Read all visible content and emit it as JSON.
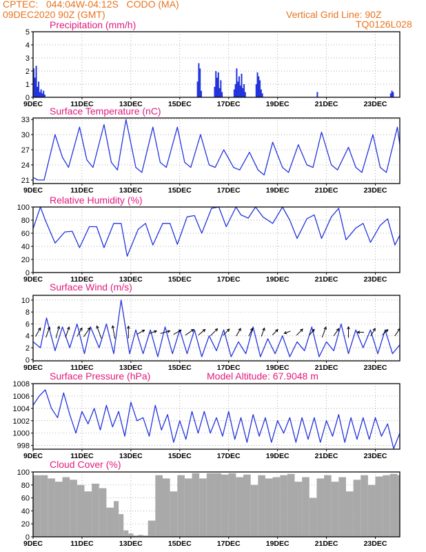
{
  "header": {
    "line1": "CPTEC:   044:04W-04:12S   CODO (MA)",
    "line2": "09DEC2020 90Z (GMT)",
    "right1": "Vertical Grid Line: 90Z",
    "right2": "TQ0126L028"
  },
  "colors": {
    "header": "#e8731e",
    "title": "#e0197d",
    "line": "#2233dd",
    "cloud": "#a9a9a9",
    "arrow": "#000000"
  },
  "x_ticks": [
    "9DEC",
    "11DEC",
    "13DEC",
    "15DEC",
    "17DEC",
    "19DEC",
    "21DEC",
    "23DEC"
  ],
  "x_range_days": [
    9,
    24
  ],
  "chart_data": [
    {
      "type": "bar",
      "id": "precip",
      "title": "Precipitation (mm/h)",
      "ylim": [
        0,
        5
      ],
      "yticks": [
        0,
        1,
        2,
        3,
        4,
        5
      ],
      "x": [
        9.0,
        9.05,
        9.1,
        9.15,
        9.2,
        9.25,
        9.3,
        9.35,
        9.4,
        9.45,
        15.7,
        15.75,
        15.8,
        15.85,
        16.4,
        16.45,
        16.5,
        16.55,
        16.6,
        16.65,
        16.7,
        17.2,
        17.25,
        17.3,
        17.35,
        17.4,
        17.45,
        17.5,
        17.55,
        17.6,
        17.65,
        18.1,
        18.15,
        18.2,
        18.25,
        18.3,
        18.35,
        20.6,
        23.6,
        23.65,
        23.7
      ],
      "values": [
        2.2,
        1.5,
        2.4,
        0.8,
        1.2,
        0.4,
        0.6,
        0.3,
        0.5,
        0.2,
        1.2,
        2.6,
        2.2,
        0.5,
        0.8,
        2.0,
        1.5,
        1.9,
        0.7,
        1.3,
        0.4,
        0.6,
        1.0,
        2.2,
        1.2,
        1.6,
        0.9,
        1.8,
        0.7,
        1.0,
        0.4,
        1.0,
        1.9,
        1.6,
        1.3,
        0.6,
        0.3,
        0.4,
        0.3,
        0.5,
        0.4
      ]
    },
    {
      "type": "line",
      "id": "temp",
      "title": "Surface Temperature (nC)",
      "ylim": [
        20.3,
        33.3
      ],
      "yticks": [
        21,
        24,
        27,
        30,
        33
      ],
      "x": [
        9.0,
        9.2,
        9.45,
        9.9,
        10.2,
        10.45,
        10.9,
        11.2,
        11.45,
        11.9,
        12.2,
        12.45,
        12.8,
        13.2,
        13.45,
        13.9,
        14.2,
        14.45,
        14.9,
        15.2,
        15.45,
        15.85,
        16.2,
        16.45,
        16.8,
        17.2,
        17.45,
        17.85,
        18.2,
        18.45,
        18.8,
        19.2,
        19.45,
        19.85,
        20.2,
        20.45,
        20.8,
        21.2,
        21.45,
        21.9,
        22.2,
        22.45,
        22.9,
        23.2,
        23.45,
        23.9,
        24.0
      ],
      "values": [
        21.5,
        21.0,
        21.0,
        30.0,
        25.5,
        23.5,
        31.5,
        25.0,
        23.5,
        32.0,
        24.5,
        23.0,
        33.0,
        23.5,
        22.5,
        31.5,
        24.5,
        23.5,
        31.5,
        24.5,
        23.5,
        30.0,
        24.0,
        23.5,
        27.0,
        23.5,
        23.0,
        26.5,
        23.0,
        22.0,
        28.5,
        23.5,
        22.5,
        28.0,
        24.0,
        23.5,
        30.5,
        24.0,
        23.0,
        27.5,
        23.5,
        22.5,
        30.0,
        23.5,
        22.5,
        31.5,
        28.0
      ]
    },
    {
      "type": "line",
      "id": "rh",
      "title": "Relative Humidity (%)",
      "ylim": [
        0,
        100
      ],
      "yticks": [
        0,
        20,
        40,
        60,
        80,
        100
      ],
      "x": [
        9.0,
        9.3,
        9.5,
        9.9,
        10.3,
        10.6,
        10.9,
        11.3,
        11.6,
        11.9,
        12.3,
        12.6,
        12.85,
        13.3,
        13.6,
        13.9,
        14.3,
        14.6,
        14.9,
        15.3,
        15.6,
        15.9,
        16.3,
        16.6,
        16.9,
        17.3,
        17.5,
        17.8,
        18.1,
        18.4,
        18.8,
        19.2,
        19.5,
        19.8,
        20.2,
        20.5,
        20.8,
        21.2,
        21.5,
        21.8,
        22.2,
        22.5,
        22.8,
        23.2,
        23.5,
        23.8,
        24.0
      ],
      "values": [
        67,
        100,
        80,
        45,
        62,
        63,
        38,
        70,
        70,
        38,
        75,
        75,
        25,
        66,
        75,
        42,
        75,
        75,
        43,
        85,
        87,
        60,
        98,
        100,
        70,
        100,
        88,
        83,
        100,
        85,
        75,
        100,
        80,
        52,
        82,
        88,
        52,
        85,
        98,
        50,
        68,
        75,
        46,
        72,
        82,
        42,
        57
      ]
    },
    {
      "type": "line",
      "id": "wind",
      "title": "Surface Wind (m/s)",
      "ylim": [
        -0.2,
        10.8
      ],
      "yticks": [
        0,
        2,
        4,
        6,
        8,
        10
      ],
      "x": [
        9.0,
        9.3,
        9.55,
        9.9,
        10.2,
        10.5,
        10.8,
        11.1,
        11.35,
        11.7,
        12.0,
        12.3,
        12.6,
        12.95,
        13.2,
        13.5,
        13.8,
        14.1,
        14.4,
        14.7,
        15.0,
        15.3,
        15.6,
        15.9,
        16.2,
        16.5,
        16.8,
        17.1,
        17.4,
        17.7,
        18.0,
        18.3,
        18.6,
        18.9,
        19.2,
        19.5,
        19.8,
        20.1,
        20.4,
        20.7,
        21.0,
        21.3,
        21.6,
        21.9,
        22.2,
        22.5,
        22.8,
        23.1,
        23.4,
        23.7,
        24.0
      ],
      "values": [
        3.0,
        2.0,
        7.0,
        1.5,
        5.5,
        2.0,
        6.0,
        1.0,
        5.5,
        2.0,
        6.0,
        1.0,
        10.0,
        1.0,
        5.0,
        1.0,
        5.0,
        0.5,
        5.5,
        1.0,
        5.0,
        1.0,
        5.0,
        0.5,
        4.0,
        1.5,
        5.0,
        0.5,
        3.0,
        1.0,
        5.5,
        0.5,
        3.5,
        1.0,
        4.0,
        0.5,
        3.0,
        1.5,
        5.5,
        0.5,
        3.0,
        1.5,
        6.0,
        1.0,
        5.0,
        2.0,
        5.0,
        1.0,
        5.0,
        1.0,
        2.5
      ]
    },
    {
      "type": "line",
      "id": "pres",
      "title": "Surface Pressure (hPa)",
      "ylim": [
        997.4,
        1008
      ],
      "yticks": [
        998,
        1000,
        1002,
        1004,
        1006,
        1008
      ],
      "annotation": "Model Altitude: 67.9048  m",
      "x": [
        9.0,
        9.25,
        9.5,
        9.75,
        10.0,
        10.25,
        10.5,
        10.75,
        11.0,
        11.25,
        11.5,
        11.75,
        12.0,
        12.25,
        12.5,
        12.75,
        13.0,
        13.25,
        13.5,
        13.75,
        14.0,
        14.25,
        14.5,
        14.75,
        15.0,
        15.25,
        15.5,
        15.75,
        16.0,
        16.25,
        16.5,
        16.75,
        17.0,
        17.25,
        17.5,
        17.75,
        18.0,
        18.25,
        18.5,
        18.75,
        19.0,
        19.25,
        19.5,
        19.75,
        20.0,
        20.25,
        20.5,
        20.75,
        21.0,
        21.25,
        21.5,
        21.75,
        22.0,
        22.25,
        22.5,
        22.75,
        23.0,
        23.25,
        23.5,
        23.75,
        24.0
      ],
      "values": [
        1004.5,
        1006.0,
        1007.0,
        1004.0,
        1002.5,
        1006.5,
        1003.0,
        1000.0,
        1003.5,
        1001.5,
        1004.0,
        1000.5,
        1004.5,
        1001.0,
        1003.5,
        999.5,
        1005.0,
        1002.0,
        1002.5,
        999.5,
        1004.5,
        1000.5,
        1003.0,
        998.5,
        1002.0,
        999.0,
        1003.5,
        1000.0,
        1003.5,
        1000.0,
        1002.5,
        999.5,
        1003.5,
        999.0,
        1002.5,
        998.5,
        1003.0,
        999.5,
        1002.5,
        998.5,
        1002.0,
        1000.0,
        1002.5,
        998.5,
        1002.5,
        999.0,
        1002.5,
        998.5,
        1002.0,
        999.5,
        1003.0,
        998.5,
        1002.5,
        999.0,
        1002.5,
        999.0,
        1002.5,
        999.5,
        1001.5,
        997.5,
        1000.0
      ]
    },
    {
      "type": "bar",
      "id": "cloud",
      "title": "Cloud Cover (%)",
      "ylim": [
        0,
        100
      ],
      "yticks": [
        0,
        20,
        40,
        60,
        80,
        100
      ],
      "x": [
        9.0,
        9.3,
        9.6,
        9.9,
        10.2,
        10.5,
        10.8,
        11.1,
        11.4,
        11.7,
        12.0,
        12.3,
        12.5,
        12.7,
        12.9,
        13.1,
        13.3,
        13.5,
        13.7,
        14.0,
        14.3,
        14.6,
        14.9,
        15.2,
        15.5,
        15.8,
        16.1,
        16.4,
        16.7,
        17.0,
        17.3,
        17.6,
        17.9,
        18.2,
        18.5,
        18.8,
        19.1,
        19.4,
        19.7,
        20.0,
        20.3,
        20.6,
        20.9,
        21.2,
        21.5,
        21.8,
        22.1,
        22.4,
        22.7,
        23.0,
        23.3,
        23.6,
        23.9
      ],
      "values": [
        95,
        95,
        90,
        85,
        92,
        88,
        80,
        70,
        82,
        75,
        45,
        55,
        35,
        10,
        5,
        2,
        3,
        2,
        25,
        95,
        90,
        70,
        95,
        90,
        98,
        90,
        98,
        98,
        96,
        98,
        92,
        96,
        80,
        95,
        90,
        92,
        95,
        97,
        85,
        92,
        60,
        90,
        95,
        85,
        92,
        70,
        88,
        95,
        80,
        93,
        95,
        97,
        95
      ]
    }
  ],
  "wind_arrows": {
    "x": [
      9.2,
      9.6,
      10.0,
      10.4,
      10.9,
      11.2,
      11.7,
      12.3,
      12.9,
      13.4,
      13.9,
      14.4,
      14.9,
      15.4,
      15.9,
      16.4,
      16.9,
      17.4,
      17.9,
      18.4,
      18.9,
      19.4,
      19.9,
      20.4,
      20.9,
      21.4,
      21.9,
      22.4,
      22.9,
      23.4,
      23.9
    ],
    "dir_deg": [
      210,
      200,
      195,
      200,
      210,
      215,
      160,
      170,
      180,
      240,
      250,
      255,
      240,
      235,
      230,
      225,
      225,
      210,
      205,
      200,
      225,
      70,
      225,
      220,
      200,
      215,
      180,
      90,
      210,
      225,
      215
    ],
    "speed": [
      4.5,
      5.0,
      5.5,
      5.0,
      4.5,
      5.0,
      6.0,
      6.0,
      5.5,
      4.0,
      3.5,
      4.5,
      4.0,
      4.5,
      4.0,
      4.5,
      4.0,
      4.0,
      4.0,
      4.0,
      3.5,
      3.0,
      4.0,
      3.5,
      5.0,
      4.0,
      5.0,
      3.0,
      4.0,
      3.5,
      4.0
    ]
  }
}
